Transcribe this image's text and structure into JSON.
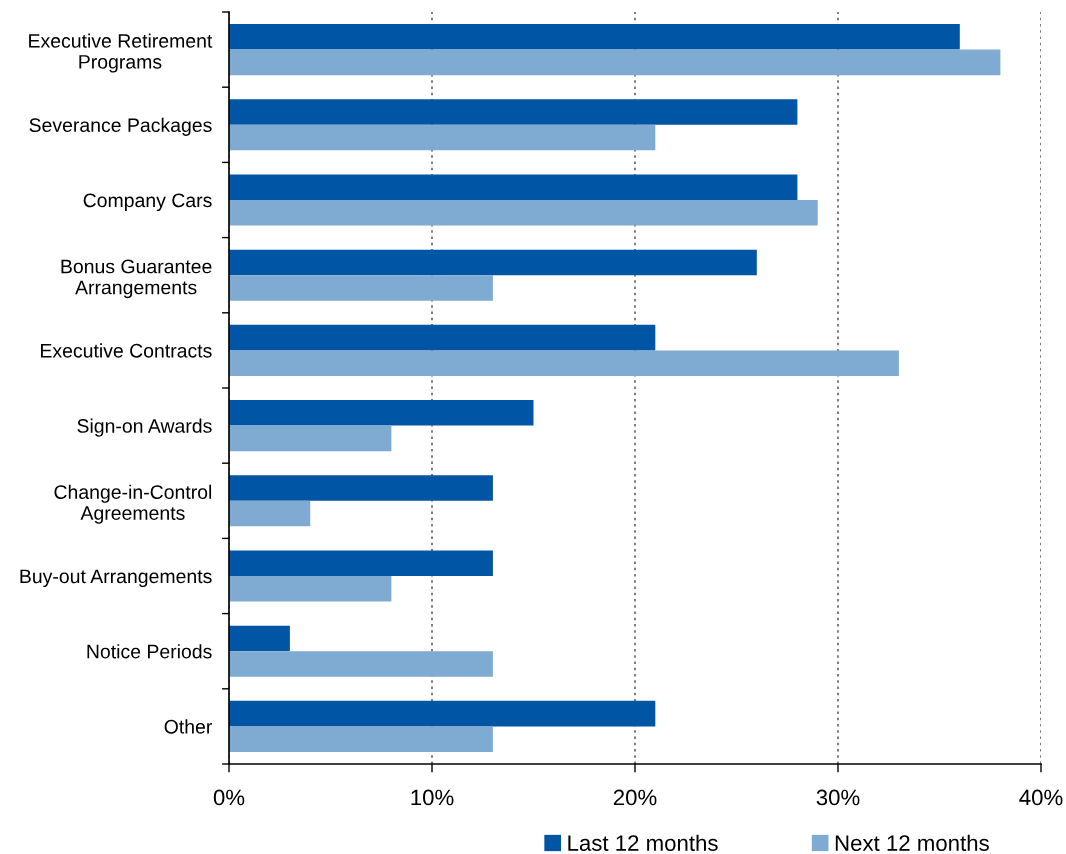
{
  "chart_data": {
    "type": "bar",
    "orientation": "horizontal",
    "categories": [
      "Executive Retirement\nPrograms",
      "Severance Packages",
      "Company Cars",
      "Bonus Guarantee\nArrangements",
      "Executive Contracts",
      "Sign-on Awards",
      "Change-in-Control\nAgreements",
      "Buy-out Arrangements",
      "Notice Periods",
      "Other"
    ],
    "series": [
      {
        "name": "Last 12 months",
        "color": "#0055a4",
        "values": [
          36,
          28,
          28,
          26,
          21,
          15,
          13,
          13,
          3,
          21
        ]
      },
      {
        "name": "Next 12 months",
        "color": "#7faad2",
        "values": [
          38,
          21,
          29,
          13,
          33,
          8,
          4,
          8,
          13,
          13
        ]
      }
    ],
    "xlim": [
      0,
      40
    ],
    "xticks": [
      {
        "value": 0,
        "label": "0%"
      },
      {
        "value": 10,
        "label": "10%"
      },
      {
        "value": 20,
        "label": "20%"
      },
      {
        "value": 30,
        "label": "30%"
      },
      {
        "value": 40,
        "label": "40%"
      }
    ],
    "grid": "x",
    "legend": "bottom"
  }
}
